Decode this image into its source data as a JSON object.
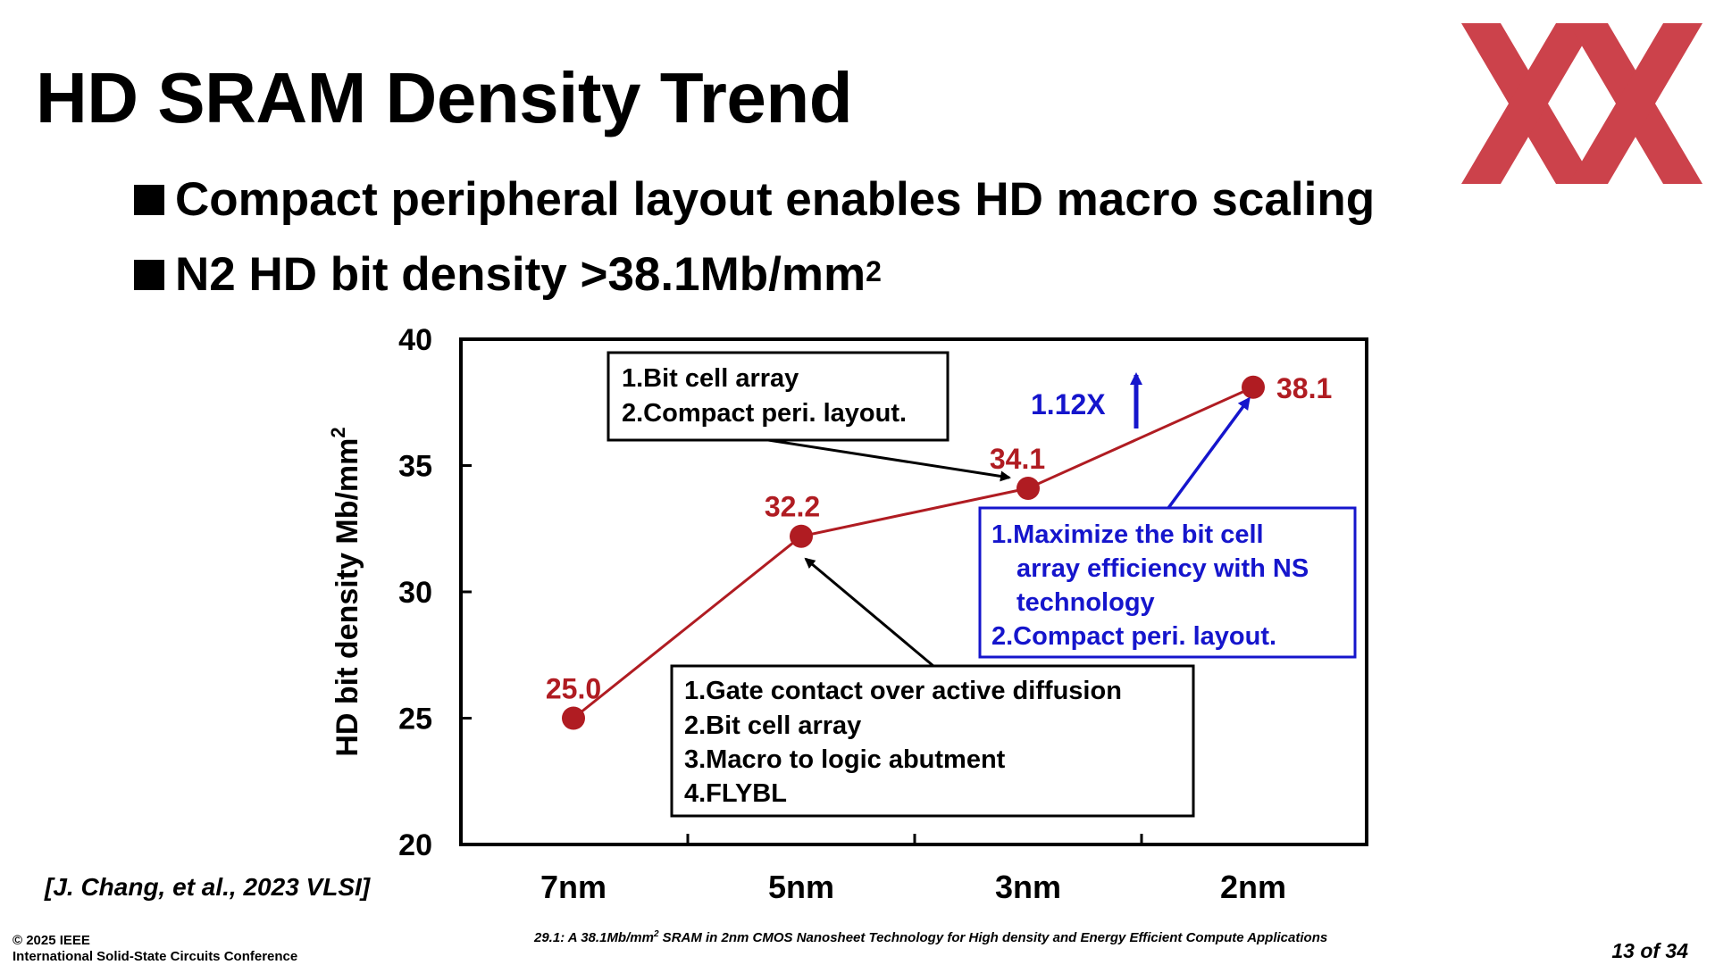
{
  "slide": {
    "title": "HD SRAM Density Trend",
    "bullets": [
      {
        "text": "Compact peripheral layout enables HD macro scaling",
        "sup": ""
      },
      {
        "text": "N2 HD bit density >38.1Mb/mm",
        "sup": "2"
      }
    ],
    "reference": "[J. Chang, et al., 2023 VLSI]",
    "footer": {
      "copyright": "© 2025 IEEE",
      "conference": "International Solid-State Circuits Conference",
      "paper_prefix": "29.1: A 38.1Mb/mm",
      "paper_sup": "2",
      "paper_suffix": " SRAM in 2nm CMOS Nanosheet Technology for High density and Energy Efficient Compute Applications",
      "page": "13 of 34"
    },
    "colors": {
      "logo": "#c8323c",
      "series": "#b01c22",
      "annotation_blue": "#1515cc"
    }
  },
  "chart_data": {
    "type": "line",
    "categories": [
      "7nm",
      "5nm",
      "3nm",
      "2nm"
    ],
    "series": [
      {
        "values": [
          25.0,
          32.2,
          34.1,
          38.1
        ]
      }
    ],
    "data_labels": [
      "25.0",
      "32.2",
      "34.1",
      "38.1"
    ],
    "ylabel": "HD bit density Mb/mm",
    "ylabel_sup": "2",
    "ylim": [
      20,
      40
    ],
    "yticks": [
      20,
      25,
      30,
      35,
      40
    ],
    "grid": false,
    "legend": "none",
    "annotations": [
      {
        "lines": [
          "1.Bit cell array",
          "2.Compact peri. layout."
        ],
        "points_to": "3nm",
        "color": "#000000"
      },
      {
        "lines": [
          "1.Gate contact over active diffusion",
          "2.Bit cell array",
          "3.Macro to logic abutment",
          "4.FLYBL"
        ],
        "points_to": "5nm",
        "color": "#000000"
      },
      {
        "lines": [
          "1.Maximize the bit cell",
          "   array efficiency with NS",
          "   technology",
          "2.Compact peri. layout."
        ],
        "points_to": "2nm",
        "color": "#1515cc"
      }
    ],
    "gain_label": "1.12X"
  }
}
